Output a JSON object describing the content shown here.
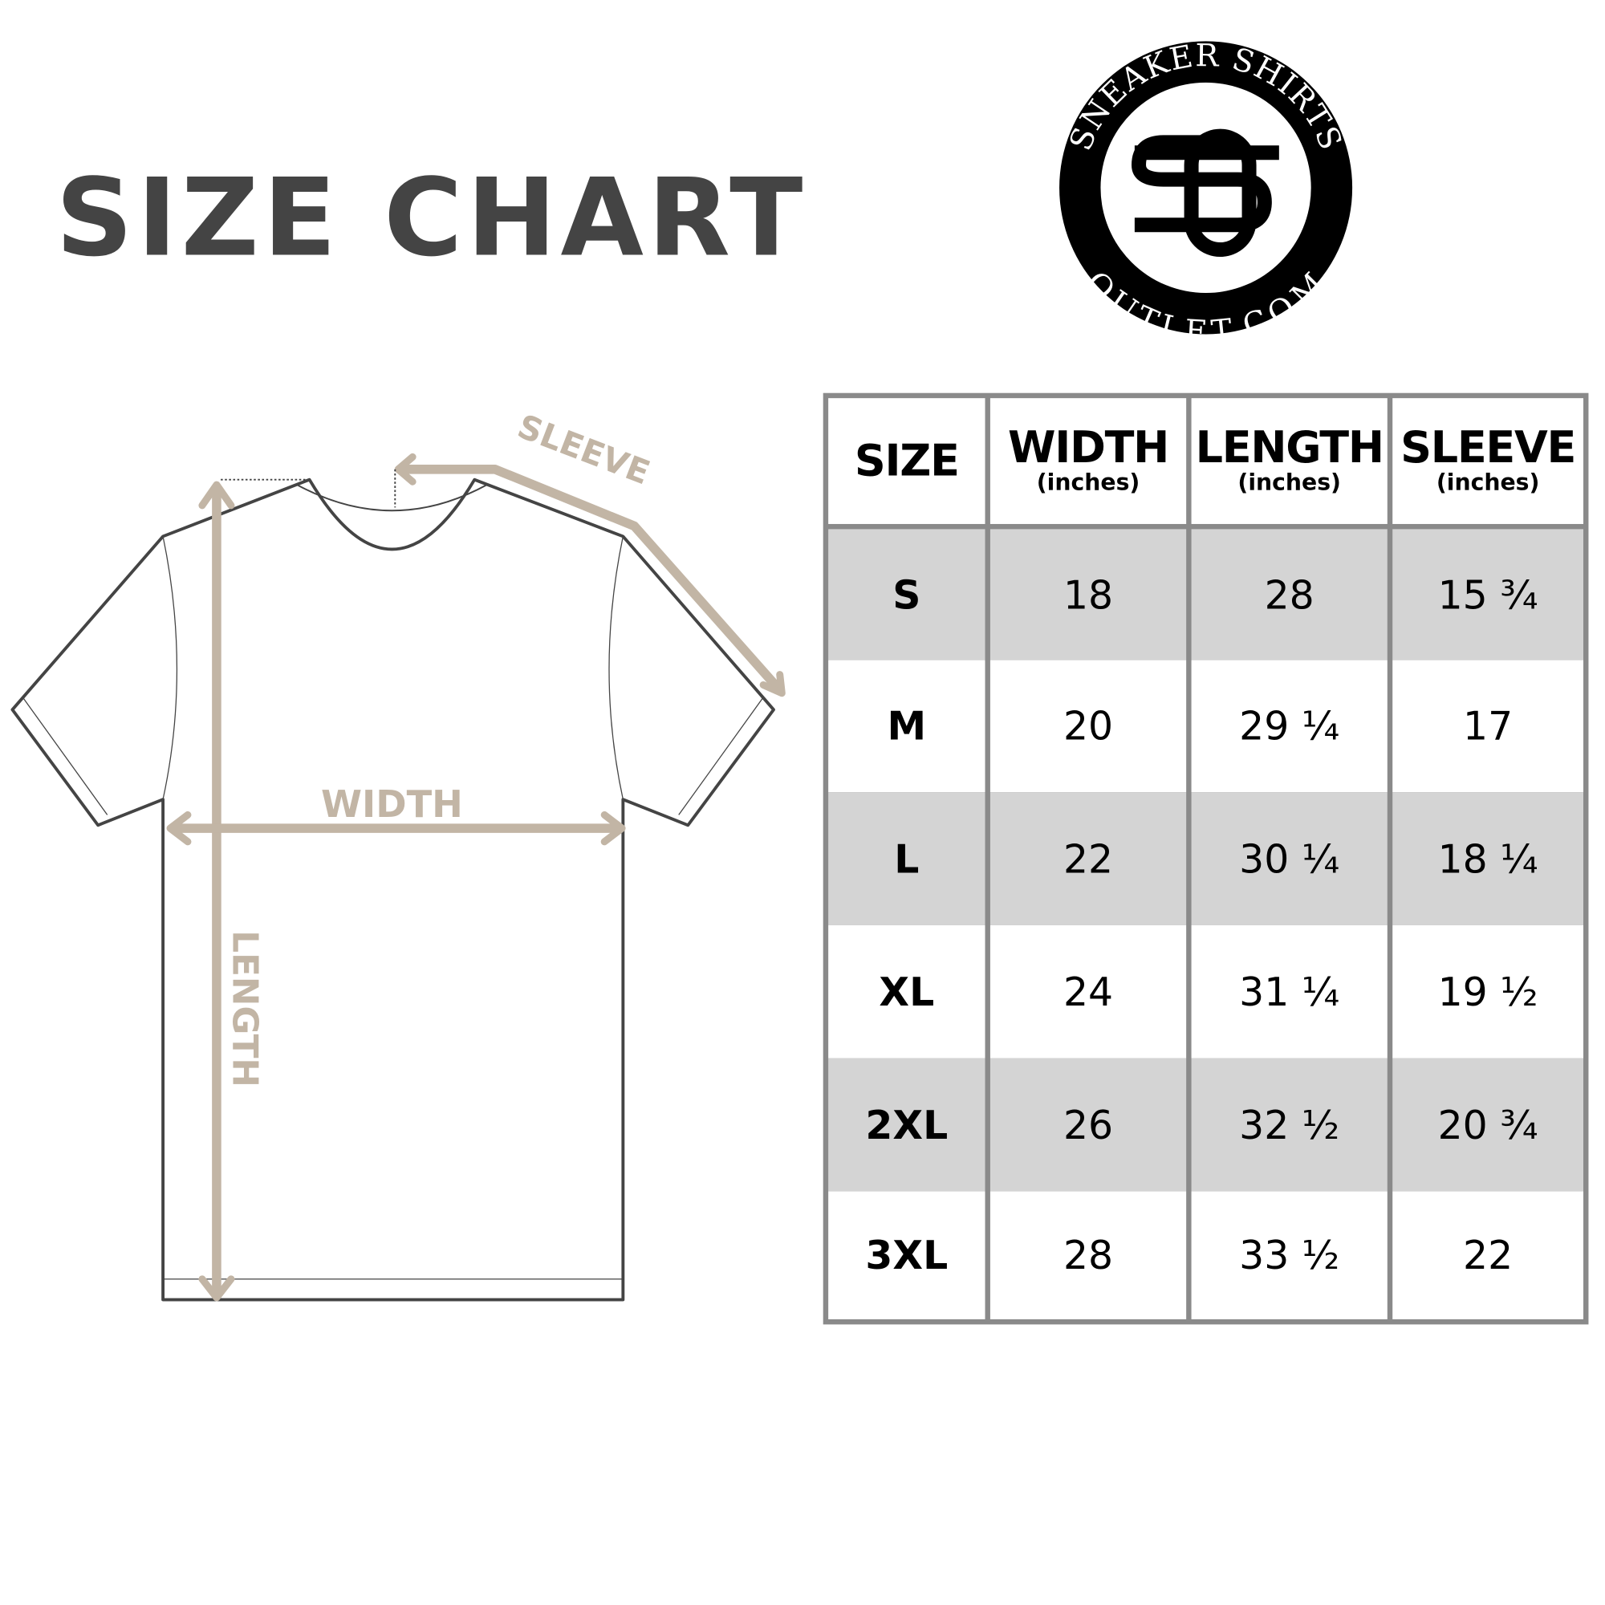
{
  "title": {
    "word1": "SIZE",
    "word2": "CHART"
  },
  "logo": {
    "top_text": "SNEAKER SHIRTS",
    "bottom_text": "OUTLET.COM",
    "monogram": "SO"
  },
  "diagram_labels": {
    "sleeve": "SLEEVE",
    "width": "WIDTH",
    "length": "LENGTH"
  },
  "colors": {
    "title": "#444444",
    "arrow": "#c2b5a5",
    "shaded_row": "#d4d4d4",
    "grid": "#8a8a8a"
  },
  "chart_data": {
    "type": "table",
    "columns": [
      {
        "label": "SIZE",
        "unit": ""
      },
      {
        "label": "WIDTH",
        "unit": "(inches)"
      },
      {
        "label": "LENGTH",
        "unit": "(inches)"
      },
      {
        "label": "SLEEVE",
        "unit": "(inches)"
      }
    ],
    "rows": [
      [
        "S",
        "18",
        "28",
        "15 ¾"
      ],
      [
        "M",
        "20",
        "29 ¼",
        "17"
      ],
      [
        "L",
        "22",
        "30 ¼",
        "18 ¼"
      ],
      [
        "XL",
        "24",
        "31 ¼",
        "19 ½"
      ],
      [
        "2XL",
        "26",
        "32 ½",
        "20 ¾"
      ],
      [
        "3XL",
        "28",
        "33 ½",
        "22"
      ]
    ]
  }
}
